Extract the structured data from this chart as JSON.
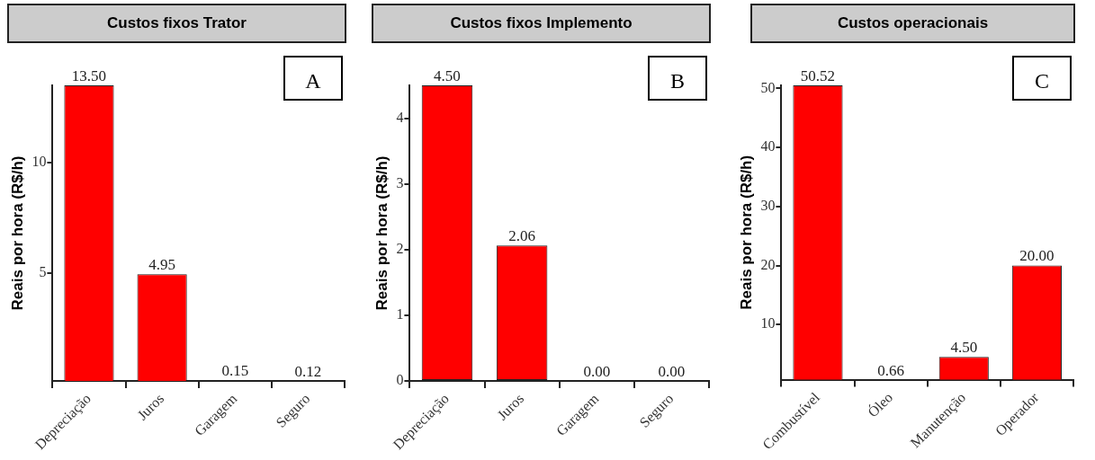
{
  "chart_data": [
    {
      "type": "bar",
      "title": "Custos fixos Trator",
      "ylabel": "Reais por hora (R$/h)",
      "categories": [
        "Depreciação",
        "Juros",
        "Garagem",
        "Seguro"
      ],
      "values": [
        13.5,
        4.95,
        0.15,
        0.12
      ],
      "value_labels": [
        "13.50",
        "4.95",
        "0.15",
        "0.12"
      ],
      "color": "#ff0000",
      "ylim": [
        0.12,
        13.5
      ],
      "yticks": [
        5,
        10
      ],
      "annotations": [
        "A"
      ],
      "grid": false
    },
    {
      "type": "bar",
      "title": "Custos fixos Implemento",
      "ylabel": "Reais por hora (R$/h)",
      "categories": [
        "Depreciação",
        "Juros",
        "Garagem",
        "Seguro"
      ],
      "values": [
        4.5,
        2.06,
        0,
        0
      ],
      "value_labels": [
        "4.50",
        "2.06",
        "0.00",
        "0.00"
      ],
      "color": "#ff0000",
      "ylim": [
        0,
        4.5
      ],
      "yticks": [
        0,
        1,
        2,
        3,
        4
      ],
      "annotations": [
        "B"
      ],
      "grid": false
    },
    {
      "type": "bar",
      "title": "Custos operacionais",
      "ylabel": "Reais por hora (R$/h)",
      "categories": [
        "Combustível",
        "Óleo",
        "Manutenção",
        "Operador"
      ],
      "values": [
        50.52,
        0.66,
        4.5,
        20
      ],
      "value_labels": [
        "50.52",
        "0.66",
        "4.50",
        "20.00"
      ],
      "color": "#ff0000",
      "ylim": [
        0.66,
        50.52
      ],
      "yticks": [
        10,
        20,
        30,
        40,
        50
      ],
      "annotations": [
        "C"
      ],
      "grid": false
    }
  ]
}
